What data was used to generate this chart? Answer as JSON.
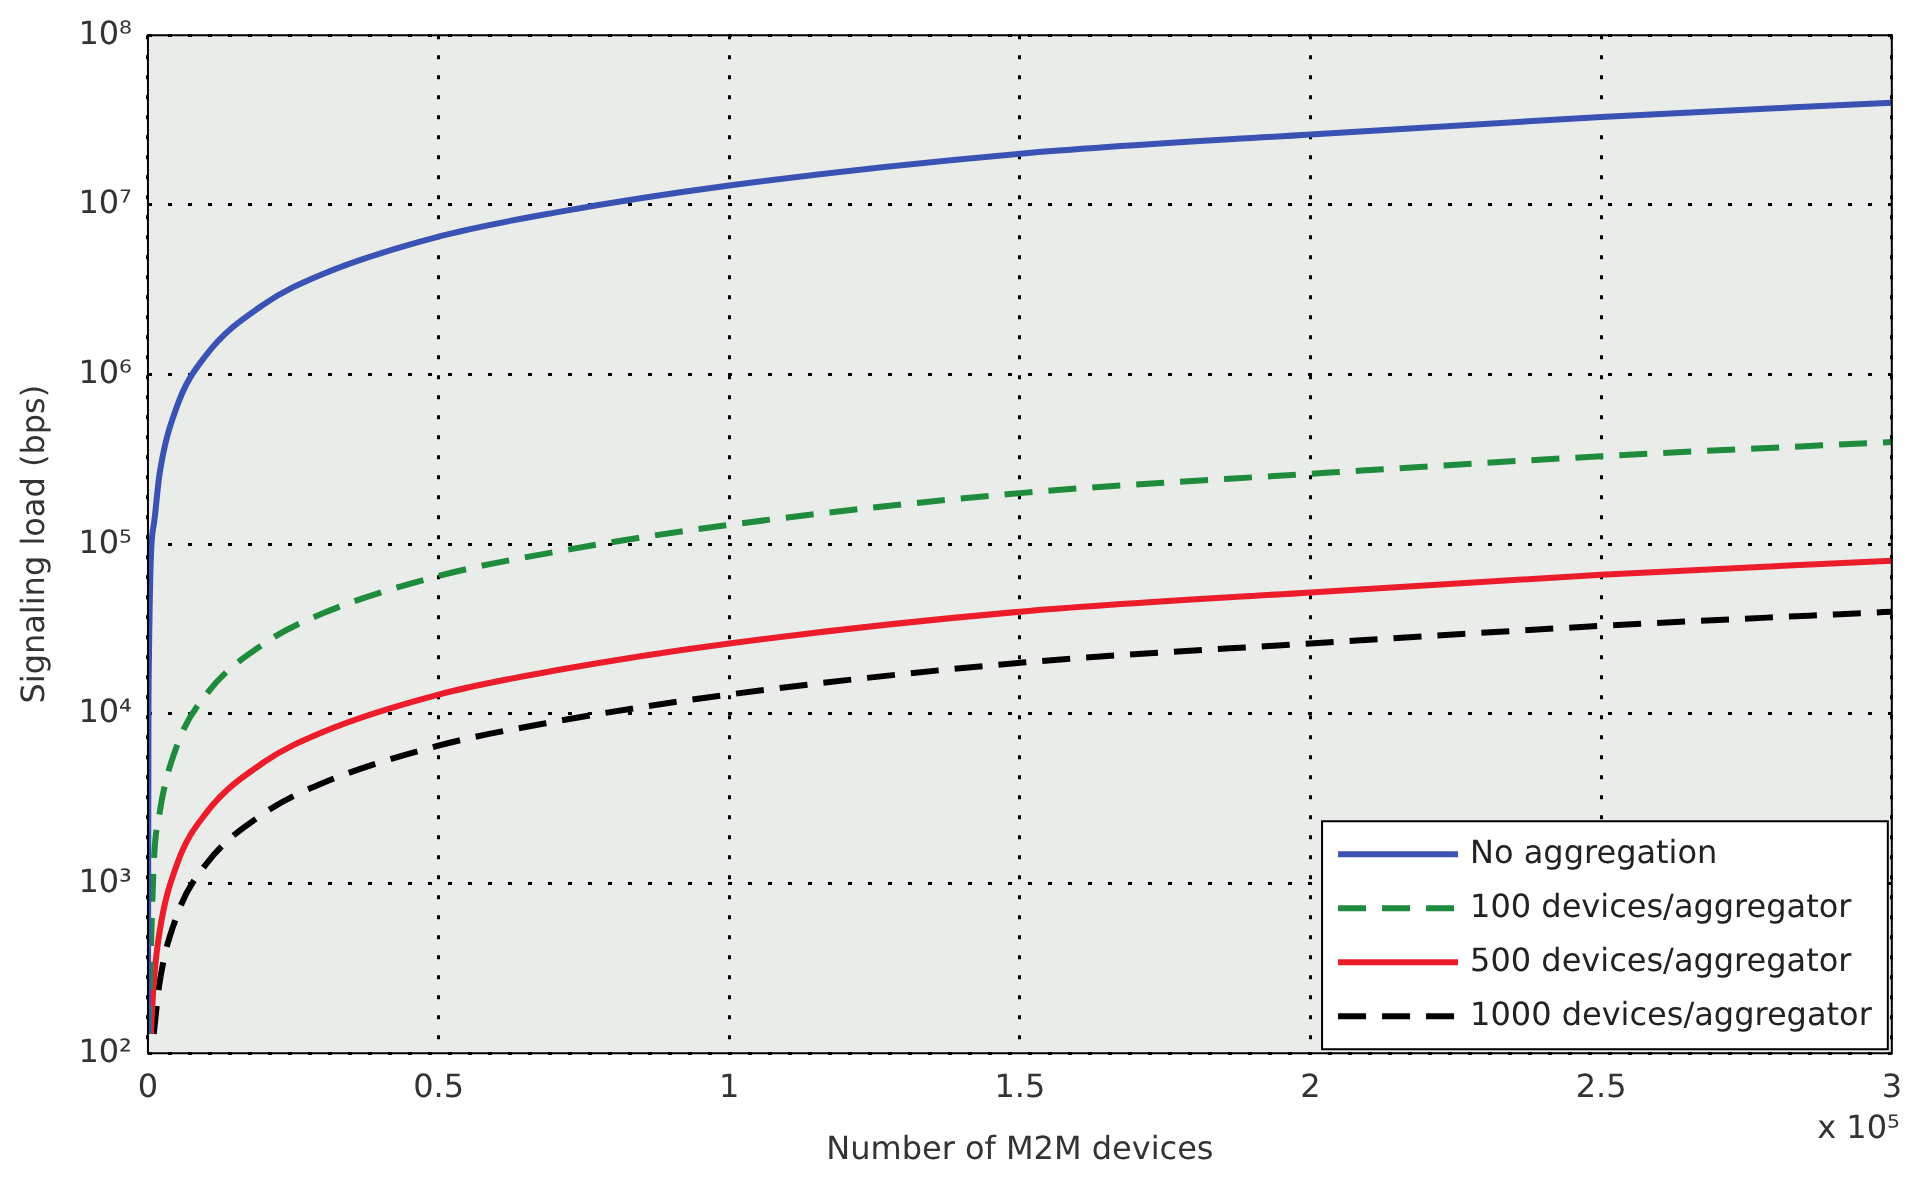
{
  "chart_data": {
    "type": "line",
    "xlabel": "Number of M2M devices",
    "ylabel": "Signaling load (bps)",
    "log": "y",
    "grid": true,
    "legend": "bottom right",
    "marker": "none",
    "xlim": [
      0,
      3
    ],
    "xticks": [
      0,
      0.5,
      1,
      1.5,
      2,
      2.5,
      3
    ],
    "ylim": [
      100,
      100000000
    ],
    "yticks": [
      {
        "value": 100,
        "label": "10²"
      },
      {
        "value": 1000,
        "label": "10³"
      },
      {
        "value": 10000,
        "label": "10⁴"
      },
      {
        "value": 100000,
        "label": "10⁵"
      },
      {
        "value": 1000000,
        "label": "10⁶"
      },
      {
        "value": 10000000,
        "label": "10⁷"
      },
      {
        "value": 100000000,
        "label": "10⁸"
      }
    ],
    "annotations": [
      "x 10⁵"
    ],
    "series": [
      {
        "name": "No aggregation",
        "color": "#3a52b4",
        "line_style": "solid",
        "x": [
          1e-05,
          0.001,
          0.01,
          0.02,
          0.05,
          0.1,
          0.2,
          0.3,
          0.5,
          0.7,
          1,
          1.5,
          2,
          2.5,
          3
        ],
        "values": [
          130,
          13000,
          130000,
          260000,
          650000,
          1300000,
          2600000,
          3900000,
          6500000,
          9000000,
          13000000,
          20000000,
          26000000,
          33000000,
          40000000
        ]
      },
      {
        "name": "100 devices/aggregator",
        "color": "#1e8c3c",
        "line_style": "dashed",
        "x": [
          0.001,
          0.01,
          0.02,
          0.05,
          0.1,
          0.2,
          0.3,
          0.5,
          0.7,
          1,
          1.5,
          2,
          2.5,
          3
        ],
        "values": [
          130,
          1300,
          2600,
          6500,
          13000,
          26000,
          39000,
          65000,
          90000,
          130000,
          200000,
          260000,
          330000,
          400000
        ]
      },
      {
        "name": "500 devices/aggregator",
        "color": "#ec1c2a",
        "line_style": "solid",
        "x": [
          0.005,
          0.01,
          0.02,
          0.05,
          0.1,
          0.2,
          0.3,
          0.5,
          0.7,
          1,
          1.5,
          2,
          2.5,
          3
        ],
        "values": [
          130,
          260,
          520,
          1300,
          2600,
          5200,
          7800,
          13000,
          18000,
          26000,
          40000,
          52000,
          66000,
          80000
        ]
      },
      {
        "name": "1000 devices/aggregator",
        "color": "#000000",
        "line_style": "dashed",
        "x": [
          0.01,
          0.02,
          0.05,
          0.1,
          0.2,
          0.3,
          0.5,
          0.7,
          1,
          1.5,
          2,
          2.5,
          3
        ],
        "values": [
          130,
          260,
          650,
          1300,
          2600,
          3900,
          6500,
          9000,
          13000,
          20000,
          26000,
          33000,
          40000
        ]
      }
    ]
  }
}
